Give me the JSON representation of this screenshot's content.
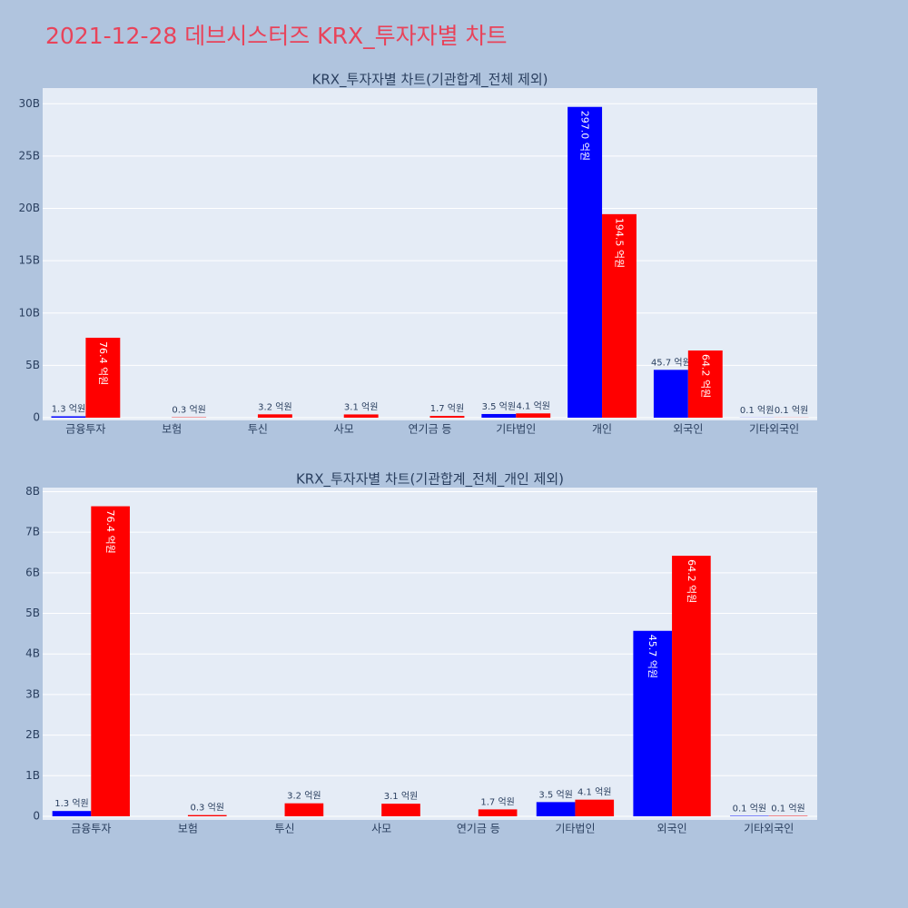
{
  "title": "2021-12-28 데브시스터즈 KRX_투자자별 차트",
  "chart_data": [
    {
      "type": "bar",
      "title": "KRX_투자자별 차트(기관합계_전체 제외)",
      "categories": [
        "금융투자",
        "보험",
        "투신",
        "사모",
        "연기금 등",
        "기타법인",
        "개인",
        "외국인",
        "기타외국인"
      ],
      "series": [
        {
          "color": "#0000ff",
          "values": [
            130000000,
            null,
            null,
            null,
            null,
            350000000,
            29700000000,
            4570000000,
            10000000
          ],
          "value_labels": [
            "1.3 억원",
            null,
            null,
            null,
            null,
            "3.5 억원",
            "297.0 억원",
            "45.7 억원",
            "0.1 억원"
          ]
        },
        {
          "color": "#ff0000",
          "values": [
            7640000000,
            30000000,
            320000000,
            310000000,
            170000000,
            410000000,
            19450000000,
            6420000000,
            10000000
          ],
          "value_labels": [
            "76.4 억원",
            "0.3 억원",
            "3.2 억원",
            "3.1 억원",
            "1.7 억원",
            "4.1 억원",
            "194.5 억원",
            "64.2 억원",
            "0.1 억원"
          ]
        }
      ],
      "ylim": [
        0,
        31500000000
      ],
      "yticks": [
        0,
        {
          "value": 5000000000,
          "label": "5B"
        },
        {
          "value": 10000000000,
          "label": "10B"
        },
        {
          "value": 15000000000,
          "label": "15B"
        },
        {
          "value": 20000000000,
          "label": "20B"
        },
        {
          "value": 25000000000,
          "label": "25B"
        },
        {
          "value": 30000000000,
          "label": "30B"
        }
      ],
      "grid": true
    },
    {
      "type": "bar",
      "title": "KRX_투자자별 차트(기관합계_전체_개인 제외)",
      "categories": [
        "금융투자",
        "보험",
        "투신",
        "사모",
        "연기금 등",
        "기타법인",
        "외국인",
        "기타외국인"
      ],
      "series": [
        {
          "color": "#0000ff",
          "values": [
            130000000,
            null,
            null,
            null,
            null,
            350000000,
            4570000000,
            10000000
          ],
          "value_labels": [
            "1.3 억원",
            null,
            null,
            null,
            null,
            "3.5 억원",
            "45.7 억원",
            "0.1 억원"
          ]
        },
        {
          "color": "#ff0000",
          "values": [
            7640000000,
            30000000,
            320000000,
            310000000,
            170000000,
            410000000,
            6420000000,
            10000000
          ],
          "value_labels": [
            "76.4 억원",
            "0.3 억원",
            "3.2 억원",
            "3.1 억원",
            "1.7 억원",
            "4.1 억원",
            "64.2 억원",
            "0.1 억원"
          ]
        }
      ],
      "ylim": [
        0,
        8100000000
      ],
      "yticks": [
        0,
        {
          "value": 1000000000,
          "label": "1B"
        },
        {
          "value": 2000000000,
          "label": "2B"
        },
        {
          "value": 3000000000,
          "label": "3B"
        },
        {
          "value": 4000000000,
          "label": "4B"
        },
        {
          "value": 5000000000,
          "label": "5B"
        },
        {
          "value": 6000000000,
          "label": "6B"
        },
        {
          "value": 7000000000,
          "label": "7B"
        },
        {
          "value": 8000000000,
          "label": "8B"
        }
      ],
      "grid": true
    }
  ]
}
